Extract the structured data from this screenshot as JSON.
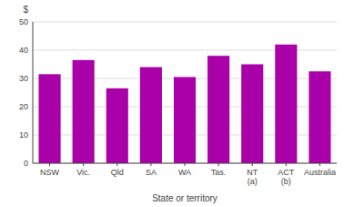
{
  "chart_data": {
    "type": "bar",
    "categories": [
      "NSW",
      "Vic.",
      "Qld",
      "SA",
      "WA",
      "Tas.",
      "NT\n(a)",
      "ACT\n(b)",
      "Australia"
    ],
    "values": [
      31.5,
      36.5,
      26.5,
      34.0,
      30.5,
      38.0,
      35.0,
      42.0,
      32.5
    ],
    "color": "#AA00AA",
    "xlabel": "State or territory",
    "ylabel": "$",
    "ylim": [
      0,
      50
    ],
    "yticks": [
      0,
      10,
      20,
      30,
      40,
      50
    ],
    "grid": true
  }
}
